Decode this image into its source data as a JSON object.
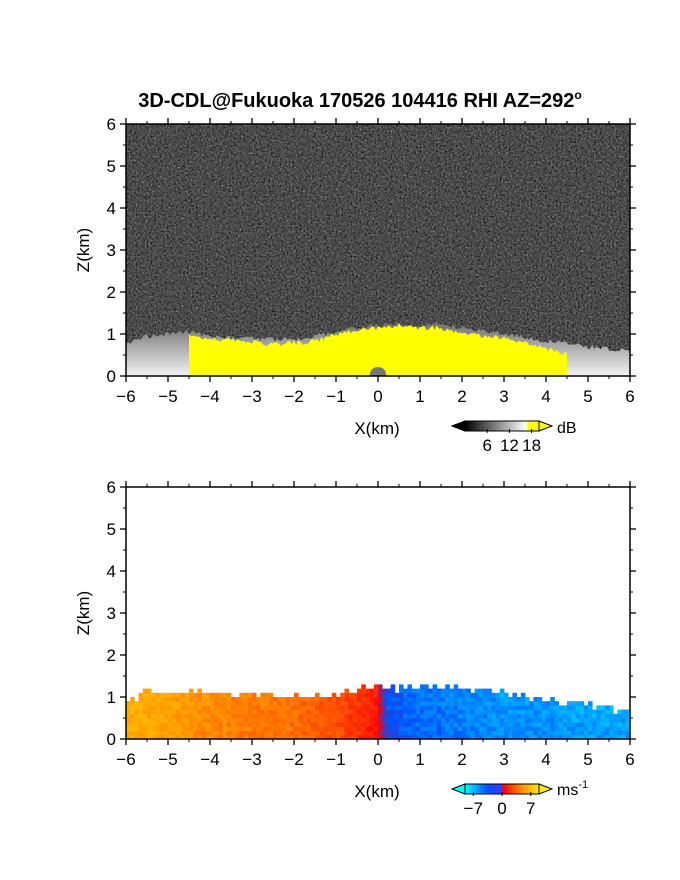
{
  "title": "3D-CDL@Fukuoka 170526 104416 RHI AZ=292",
  "title_suffix": "o",
  "chart_data": [
    {
      "type": "heatmap",
      "id": "reflectivity",
      "xlabel": "X(km)",
      "ylabel": "Z(km)",
      "xlim": [
        -6,
        6
      ],
      "ylim": [
        0,
        6
      ],
      "x_ticks": [
        -6,
        -5,
        -4,
        -3,
        -2,
        -1,
        0,
        1,
        2,
        3,
        4,
        5,
        6
      ],
      "y_ticks": [
        0,
        1,
        2,
        3,
        4,
        5,
        6
      ],
      "background": "noise (dark gray)",
      "colorbar": {
        "unit": "dB",
        "ticks": [
          6,
          12,
          18
        ],
        "min": 0,
        "max": 20,
        "colors": [
          "#000000",
          "#ffffff",
          "#ffff00"
        ]
      },
      "echo_top_km": [
        [
          -6,
          0.75
        ],
        [
          -5.5,
          0.95
        ],
        [
          -5,
          1.0
        ],
        [
          -4.5,
          1.05
        ],
        [
          -4,
          0.95
        ],
        [
          -3,
          0.9
        ],
        [
          -2,
          0.85
        ],
        [
          -1,
          1.05
        ],
        [
          -0.5,
          1.15
        ],
        [
          0,
          1.2
        ],
        [
          0.5,
          1.25
        ],
        [
          1,
          1.2
        ],
        [
          1.5,
          1.25
        ],
        [
          2,
          1.15
        ],
        [
          3,
          1.0
        ],
        [
          4,
          0.85
        ],
        [
          5,
          0.7
        ],
        [
          6,
          0.6
        ]
      ],
      "saturated_top_km": [
        [
          -4.5,
          0.95
        ],
        [
          -3.5,
          0.85
        ],
        [
          -2.5,
          0.75
        ],
        [
          -1.5,
          0.82
        ],
        [
          -1,
          1.0
        ],
        [
          0,
          1.15
        ],
        [
          0.5,
          1.2
        ],
        [
          1,
          1.15
        ],
        [
          1.5,
          1.15
        ],
        [
          2,
          1.0
        ],
        [
          2.5,
          0.95
        ],
        [
          3,
          0.9
        ],
        [
          3.5,
          0.8
        ],
        [
          4,
          0.65
        ],
        [
          4.5,
          0.5
        ]
      ]
    },
    {
      "type": "heatmap",
      "id": "doppler-velocity",
      "xlabel": "X(km)",
      "ylabel": "Z(km)",
      "xlim": [
        -6,
        6
      ],
      "ylim": [
        0,
        6
      ],
      "x_ticks": [
        -6,
        -5,
        -4,
        -3,
        -2,
        -1,
        0,
        1,
        2,
        3,
        4,
        5,
        6
      ],
      "y_ticks": [
        0,
        1,
        2,
        3,
        4,
        5,
        6
      ],
      "colorbar": {
        "unit": "ms",
        "unit_exponent": "-1",
        "ticks": [
          -7,
          0,
          7
        ],
        "min": -9,
        "max": 9,
        "colors": [
          "#00ffff",
          "#0050ff",
          "#ff0000",
          "#ff8800",
          "#ffee00"
        ]
      },
      "velocity_by_x": [
        [
          -6,
          6
        ],
        [
          -5,
          5.5
        ],
        [
          -4,
          4.5
        ],
        [
          -3,
          4
        ],
        [
          -2,
          3.5
        ],
        [
          -1,
          2.5
        ],
        [
          -0.5,
          1.5
        ],
        [
          0,
          0.5
        ],
        [
          0.2,
          -4
        ],
        [
          1,
          -5
        ],
        [
          2,
          -5.5
        ],
        [
          3,
          -6
        ],
        [
          4,
          -6
        ],
        [
          5,
          -6.5
        ],
        [
          6,
          -6.5
        ]
      ],
      "echo_top_km": [
        [
          -6,
          0.8
        ],
        [
          -5.5,
          1.1
        ],
        [
          -5,
          1.0
        ],
        [
          -4.5,
          1.15
        ],
        [
          -4,
          1.05
        ],
        [
          -3,
          1.0
        ],
        [
          -2,
          0.95
        ],
        [
          -1,
          1.0
        ],
        [
          -0.5,
          1.15
        ],
        [
          0,
          1.2
        ],
        [
          0.5,
          1.15
        ],
        [
          1,
          1.25
        ],
        [
          1.5,
          1.2
        ],
        [
          2,
          1.15
        ],
        [
          3,
          1.05
        ],
        [
          4,
          0.9
        ],
        [
          5,
          0.75
        ],
        [
          6,
          0.6
        ]
      ]
    }
  ]
}
